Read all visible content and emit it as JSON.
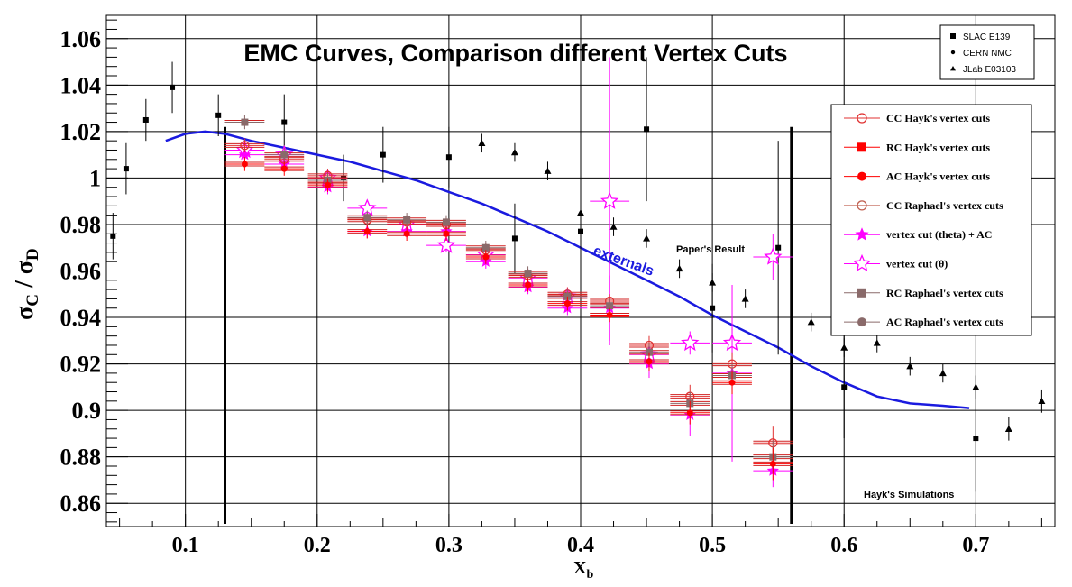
{
  "chart_data": {
    "type": "scatter",
    "title": "EMC Curves, Comparison different Vertex Cuts",
    "xlabel": "X",
    "xlabel_sub": "b",
    "ylabel": "σ",
    "ylabel_parts": [
      "σ",
      "C",
      " / ",
      "σ",
      "D"
    ],
    "xlim": [
      0.04,
      0.76
    ],
    "ylim": [
      0.85,
      1.07
    ],
    "x_ticks": [
      0.1,
      0.2,
      0.3,
      0.4,
      0.5,
      0.6,
      0.7
    ],
    "x_tick_labels": [
      "0.1",
      "0.2",
      "0.3",
      "0.4",
      "0.5",
      "0.6",
      "0.7"
    ],
    "y_ticks": [
      0.86,
      0.88,
      0.9,
      0.92,
      0.94,
      0.96,
      0.98,
      1.0,
      1.02,
      1.04,
      1.06
    ],
    "y_tick_labels": [
      "0.86",
      "0.88",
      "0.9",
      "0.92",
      "0.94",
      "0.96",
      "0.98",
      "1",
      "1.02",
      "1.04",
      "1.06"
    ],
    "grid": true,
    "legend_top": {
      "placement": "top-right",
      "entries": [
        {
          "label": "SLAC E139",
          "marker": "square"
        },
        {
          "label": "CERN NMC",
          "marker": "dot"
        },
        {
          "label": "JLab E03103",
          "marker": "triangle"
        }
      ]
    },
    "legend_main": {
      "placement": "right",
      "entries": [
        {
          "label": "CC Hayk's vertex cuts",
          "marker": "open-circle",
          "color": "#e03030"
        },
        {
          "label": "RC Hayk's vertex cuts",
          "marker": "square",
          "color": "#ff0000"
        },
        {
          "label": "AC Hayk's vertex cuts",
          "marker": "circle",
          "color": "#ff0000"
        },
        {
          "label": "CC Raphael's vertex cuts",
          "marker": "open-circle",
          "color": "#c06050"
        },
        {
          "label": "vertex cut (theta) + AC",
          "marker": "star",
          "color": "#ff00ff"
        },
        {
          "label": "vertex cut (θ)",
          "marker": "open-star",
          "color": "#ff00ff"
        },
        {
          "label": "RC Raphael's vertex cuts",
          "marker": "square",
          "color": "#8a6a6a"
        },
        {
          "label": "AC Raphael's vertex cuts",
          "marker": "circle",
          "color": "#8a6a6a"
        }
      ]
    },
    "annotations": {
      "externals": "externals",
      "paper": "Paper's Result",
      "hayk": "Hayk's Simulations"
    },
    "vertical_lines_x": [
      0.13,
      0.56
    ],
    "colors": {
      "curve": "#1a1adf",
      "magenta": "#ff00ff",
      "red": "#ff0000",
      "brown": "#8a6a6a",
      "black": "#000000"
    },
    "series": [
      {
        "name": "SLAC E139",
        "marker": "square",
        "points": [
          {
            "x": 0.045,
            "y": 0.975,
            "err": 0.01
          },
          {
            "x": 0.055,
            "y": 1.004,
            "err": 0.011
          },
          {
            "x": 0.07,
            "y": 1.025,
            "err": 0.009
          },
          {
            "x": 0.09,
            "y": 1.039,
            "err": 0.011
          },
          {
            "x": 0.125,
            "y": 1.027,
            "err": 0.009
          },
          {
            "x": 0.175,
            "y": 1.024,
            "err": 0.012
          },
          {
            "x": 0.22,
            "y": 1.0,
            "err": 0.01
          },
          {
            "x": 0.25,
            "y": 1.01,
            "err": 0.012
          },
          {
            "x": 0.3,
            "y": 1.009,
            "err": 0.013
          },
          {
            "x": 0.35,
            "y": 0.974,
            "err": 0.015
          },
          {
            "x": 0.4,
            "y": 0.977,
            "err": 0.016
          },
          {
            "x": 0.45,
            "y": 1.021,
            "err": 0.031
          },
          {
            "x": 0.5,
            "y": 0.944,
            "err": 0.019
          },
          {
            "x": 0.55,
            "y": 0.97,
            "err": 0.046
          },
          {
            "x": 0.6,
            "y": 0.91,
            "err": 0.022
          },
          {
            "x": 0.7,
            "y": 0.888,
            "err": 0.023
          }
        ]
      },
      {
        "name": "JLab E03103",
        "marker": "triangle",
        "points": [
          {
            "x": 0.325,
            "y": 1.015,
            "err": 0.004
          },
          {
            "x": 0.35,
            "y": 1.011,
            "err": 0.004
          },
          {
            "x": 0.375,
            "y": 1.003,
            "err": 0.004
          },
          {
            "x": 0.4,
            "y": 0.985,
            "err": 0.004
          },
          {
            "x": 0.425,
            "y": 0.979,
            "err": 0.004
          },
          {
            "x": 0.45,
            "y": 0.974,
            "err": 0.004
          },
          {
            "x": 0.475,
            "y": 0.961,
            "err": 0.004
          },
          {
            "x": 0.5,
            "y": 0.955,
            "err": 0.004
          },
          {
            "x": 0.525,
            "y": 0.948,
            "err": 0.004
          },
          {
            "x": 0.575,
            "y": 0.938,
            "err": 0.004
          },
          {
            "x": 0.6,
            "y": 0.927,
            "err": 0.004
          },
          {
            "x": 0.625,
            "y": 0.929,
            "err": 0.004
          },
          {
            "x": 0.65,
            "y": 0.919,
            "err": 0.004
          },
          {
            "x": 0.675,
            "y": 0.916,
            "err": 0.004
          },
          {
            "x": 0.7,
            "y": 0.91,
            "err": 0.005
          },
          {
            "x": 0.725,
            "y": 0.892,
            "err": 0.005
          },
          {
            "x": 0.75,
            "y": 0.904,
            "err": 0.005
          }
        ]
      },
      {
        "name": "externals",
        "type": "line",
        "x": [
          0.085,
          0.1,
          0.115,
          0.13,
          0.15,
          0.175,
          0.2,
          0.225,
          0.25,
          0.275,
          0.3,
          0.325,
          0.35,
          0.375,
          0.4,
          0.425,
          0.45,
          0.475,
          0.5,
          0.525,
          0.55,
          0.575,
          0.6,
          0.625,
          0.65,
          0.675,
          0.695
        ],
        "y": [
          1.016,
          1.019,
          1.02,
          1.019,
          1.016,
          1.013,
          1.01,
          1.007,
          1.003,
          0.999,
          0.994,
          0.989,
          0.983,
          0.977,
          0.97,
          0.963,
          0.956,
          0.949,
          0.941,
          0.934,
          0.927,
          0.919,
          0.912,
          0.906,
          0.903,
          0.902,
          0.901
        ]
      },
      {
        "name": "vertex cut (θ)",
        "marker": "open-star",
        "points": [
          {
            "x": 0.145,
            "y": 1.012,
            "err": 0.003
          },
          {
            "x": 0.175,
            "y": 1.01,
            "err": 0.003
          },
          {
            "x": 0.208,
            "y": 1.0,
            "err": 0.003
          },
          {
            "x": 0.238,
            "y": 0.987,
            "err": 0.003
          },
          {
            "x": 0.268,
            "y": 0.98,
            "err": 0.003
          },
          {
            "x": 0.298,
            "y": 0.971,
            "err": 0.003
          },
          {
            "x": 0.328,
            "y": 0.967,
            "err": 0.003
          },
          {
            "x": 0.36,
            "y": 0.957,
            "err": 0.003
          },
          {
            "x": 0.39,
            "y": 0.949,
            "err": 0.003
          },
          {
            "x": 0.422,
            "y": 0.99,
            "err": 0.062
          },
          {
            "x": 0.452,
            "y": 0.924,
            "err": 0.005
          },
          {
            "x": 0.483,
            "y": 0.929,
            "err": 0.005
          },
          {
            "x": 0.515,
            "y": 0.929,
            "err": 0.006
          },
          {
            "x": 0.546,
            "y": 0.966,
            "err": 0.01
          }
        ]
      },
      {
        "name": "vertex cut (theta) + AC",
        "marker": "star",
        "points": [
          {
            "x": 0.145,
            "y": 1.01,
            "err": 0.003
          },
          {
            "x": 0.175,
            "y": 1.006,
            "err": 0.003
          },
          {
            "x": 0.208,
            "y": 0.996,
            "err": 0.003
          },
          {
            "x": 0.238,
            "y": 0.977,
            "err": 0.003
          },
          {
            "x": 0.268,
            "y": 0.977,
            "err": 0.003
          },
          {
            "x": 0.298,
            "y": 0.977,
            "err": 0.003
          },
          {
            "x": 0.328,
            "y": 0.964,
            "err": 0.003
          },
          {
            "x": 0.36,
            "y": 0.953,
            "err": 0.003
          },
          {
            "x": 0.39,
            "y": 0.944,
            "err": 0.003
          },
          {
            "x": 0.422,
            "y": 0.944,
            "err": 0.014
          },
          {
            "x": 0.452,
            "y": 0.92,
            "err": 0.006
          },
          {
            "x": 0.483,
            "y": 0.898,
            "err": 0.009
          },
          {
            "x": 0.515,
            "y": 0.916,
            "err": 0.038
          },
          {
            "x": 0.546,
            "y": 0.874,
            "err": 0.007
          }
        ]
      },
      {
        "name": "CC Hayk's vertex cuts",
        "marker": "open-circle",
        "points": [
          {
            "x": 0.145,
            "y": 1.014,
            "err": 0.003
          },
          {
            "x": 0.175,
            "y": 1.008,
            "err": 0.003
          },
          {
            "x": 0.208,
            "y": 1.001,
            "err": 0.003
          },
          {
            "x": 0.238,
            "y": 0.982,
            "err": 0.003
          },
          {
            "x": 0.268,
            "y": 0.981,
            "err": 0.003
          },
          {
            "x": 0.298,
            "y": 0.98,
            "err": 0.003
          },
          {
            "x": 0.328,
            "y": 0.969,
            "err": 0.003
          },
          {
            "x": 0.36,
            "y": 0.958,
            "err": 0.003
          },
          {
            "x": 0.39,
            "y": 0.95,
            "err": 0.003
          },
          {
            "x": 0.422,
            "y": 0.947,
            "err": 0.003
          },
          {
            "x": 0.452,
            "y": 0.928,
            "err": 0.004
          },
          {
            "x": 0.483,
            "y": 0.906,
            "err": 0.005
          },
          {
            "x": 0.515,
            "y": 0.92,
            "err": 0.005
          },
          {
            "x": 0.546,
            "y": 0.886,
            "err": 0.007
          }
        ]
      },
      {
        "name": "RC Raphael's vertex cuts",
        "marker": "square",
        "points": [
          {
            "x": 0.145,
            "y": 1.024,
            "err": 0.003
          },
          {
            "x": 0.175,
            "y": 1.01,
            "err": 0.003
          },
          {
            "x": 0.208,
            "y": 0.999,
            "err": 0.003
          },
          {
            "x": 0.238,
            "y": 0.983,
            "err": 0.003
          },
          {
            "x": 0.268,
            "y": 0.982,
            "err": 0.003
          },
          {
            "x": 0.298,
            "y": 0.981,
            "err": 0.003
          },
          {
            "x": 0.328,
            "y": 0.97,
            "err": 0.003
          },
          {
            "x": 0.36,
            "y": 0.959,
            "err": 0.003
          },
          {
            "x": 0.39,
            "y": 0.949,
            "err": 0.003
          },
          {
            "x": 0.422,
            "y": 0.945,
            "err": 0.003
          },
          {
            "x": 0.452,
            "y": 0.925,
            "err": 0.004
          },
          {
            "x": 0.483,
            "y": 0.903,
            "err": 0.005
          },
          {
            "x": 0.515,
            "y": 0.915,
            "err": 0.005
          },
          {
            "x": 0.546,
            "y": 0.88,
            "err": 0.007
          }
        ]
      },
      {
        "name": "AC Hayk's vertex cuts",
        "marker": "circle",
        "points": [
          {
            "x": 0.145,
            "y": 1.006,
            "err": 0.003
          },
          {
            "x": 0.175,
            "y": 1.004,
            "err": 0.003
          },
          {
            "x": 0.208,
            "y": 0.997,
            "err": 0.003
          },
          {
            "x": 0.238,
            "y": 0.977,
            "err": 0.003
          },
          {
            "x": 0.268,
            "y": 0.976,
            "err": 0.003
          },
          {
            "x": 0.298,
            "y": 0.976,
            "err": 0.003
          },
          {
            "x": 0.328,
            "y": 0.966,
            "err": 0.003
          },
          {
            "x": 0.36,
            "y": 0.954,
            "err": 0.003
          },
          {
            "x": 0.39,
            "y": 0.946,
            "err": 0.003
          },
          {
            "x": 0.422,
            "y": 0.941,
            "err": 0.003
          },
          {
            "x": 0.452,
            "y": 0.921,
            "err": 0.004
          },
          {
            "x": 0.483,
            "y": 0.899,
            "err": 0.005
          },
          {
            "x": 0.515,
            "y": 0.912,
            "err": 0.005
          },
          {
            "x": 0.546,
            "y": 0.877,
            "err": 0.007
          }
        ]
      }
    ]
  }
}
